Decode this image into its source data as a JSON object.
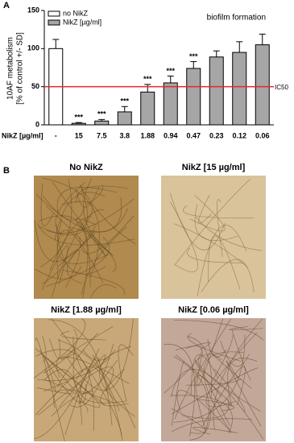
{
  "chart_data": {
    "type": "bar",
    "panel_label": "A",
    "annotation": "biofilm formation",
    "y_label": [
      "10AF metabolism",
      "[% of control +/- SD]"
    ],
    "x_label": "NikZ [µg/ml]",
    "categories": [
      "-",
      "15",
      "7.5",
      "3.8",
      "1.88",
      "0.94",
      "0.47",
      "0.23",
      "0.12",
      "0.06"
    ],
    "series": [
      {
        "name": "no NikZ",
        "color": "#ffffff",
        "values": [
          100,
          null,
          null,
          null,
          null,
          null,
          null,
          null,
          null,
          null
        ],
        "errors": [
          12,
          null,
          null,
          null,
          null,
          null,
          null,
          null,
          null,
          null
        ]
      },
      {
        "name": "NikZ [µg/ml]",
        "color": "#a6a6a6",
        "values": [
          null,
          2,
          5,
          17,
          43,
          55,
          74,
          89,
          95,
          105
        ],
        "errors": [
          null,
          1,
          2,
          7,
          10,
          9,
          9,
          8,
          14,
          14
        ]
      }
    ],
    "significance_labels": [
      null,
      "***",
      "***",
      "***",
      "***",
      "***",
      "***",
      null,
      null,
      null
    ],
    "reference_line": {
      "value": 50,
      "label": "IC50",
      "color": "#e8262b"
    },
    "ylim": [
      0,
      150
    ],
    "yticks": [
      0,
      50,
      100,
      150
    ]
  },
  "panel_b": {
    "label": "B",
    "images": [
      {
        "title": "No NikZ"
      },
      {
        "title": "NikZ [15 µg/ml]"
      },
      {
        "title": "NikZ [1.88 µg/ml]"
      },
      {
        "title": "NikZ [0.06 µg/ml]"
      }
    ]
  }
}
